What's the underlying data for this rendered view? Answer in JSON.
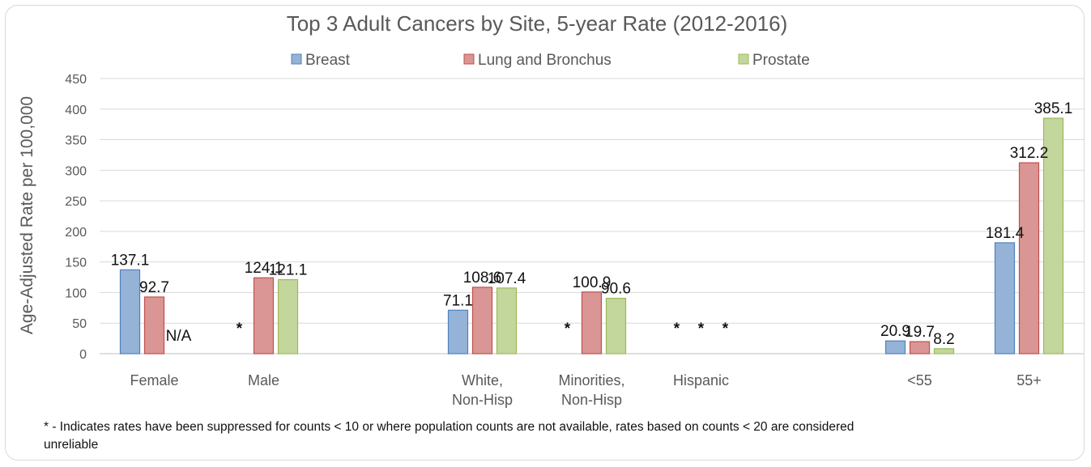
{
  "colors": {
    "Breast": {
      "fill": "#95b3d7",
      "stroke": "#4f81bd"
    },
    "Lung and Bronchus": {
      "fill": "#d99694",
      "stroke": "#c0504d"
    },
    "Prostate": {
      "fill": "#c3d69b",
      "stroke": "#9bbb59"
    },
    "grid": "#d9d9d9",
    "text": "#595959"
  },
  "footnote": "* - Indicates rates have been suppressed for counts < 10 or where population counts are not available, rates based on counts < 20 are considered unreliable",
  "chart_data": {
    "type": "bar",
    "title": "Top 3 Adult Cancers by Site, 5-year Rate (2012-2016)",
    "xlabel": "",
    "ylabel": "Age-Adjusted Rate per 100,000",
    "ylim": [
      0,
      450
    ],
    "yticks": [
      0,
      50,
      100,
      150,
      200,
      250,
      300,
      350,
      400,
      450
    ],
    "grid": true,
    "legend_position": "top",
    "categories": [
      [
        "Female"
      ],
      [
        "Male"
      ],
      [],
      [
        "White,",
        "Non-Hisp"
      ],
      [
        "Minorities,",
        "Non-Hisp"
      ],
      [
        "Hispanic"
      ],
      [],
      [
        "<55"
      ],
      [
        "55+"
      ]
    ],
    "series": [
      {
        "name": "Breast",
        "values": [
          137.1,
          null,
          null,
          71.1,
          null,
          null,
          null,
          20.9,
          181.4
        ],
        "labels": [
          "137.1",
          "*",
          "",
          "71.1",
          "*",
          "*",
          "",
          "20.9",
          "181.4"
        ]
      },
      {
        "name": "Lung and Bronchus",
        "values": [
          92.7,
          124.1,
          null,
          108.6,
          100.9,
          null,
          null,
          19.7,
          312.2
        ],
        "labels": [
          "92.7",
          "124.1",
          "",
          "108.6",
          "100.9",
          "*",
          "",
          "19.7",
          "312.2"
        ]
      },
      {
        "name": "Prostate",
        "values": [
          null,
          121.1,
          null,
          107.4,
          90.6,
          null,
          null,
          8.2,
          385.1
        ],
        "labels": [
          "N/A",
          "121.1",
          "",
          "107.4",
          "90.6",
          "*",
          "",
          "8.2",
          "385.1"
        ]
      }
    ]
  }
}
